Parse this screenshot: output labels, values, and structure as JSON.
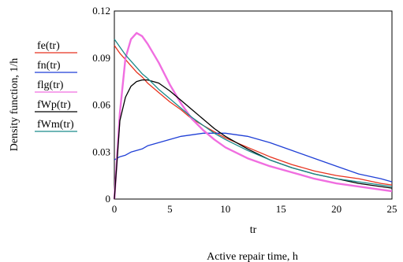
{
  "chart_data": {
    "type": "line",
    "xlabel": "tr",
    "xlabel_caption": "Active repair time, h",
    "ylabel": "Density function, 1/h",
    "xlim": [
      0,
      25
    ],
    "ylim": [
      0,
      0.12
    ],
    "x_ticks": [
      "0",
      "5",
      "10",
      "15",
      "20",
      "25"
    ],
    "y_ticks": [
      "0",
      "0.03",
      "0.06",
      "0.09",
      "0.12"
    ],
    "grid": false,
    "legend_position": "left",
    "x": [
      0,
      0.5,
      1,
      1.5,
      2,
      2.5,
      3,
      4,
      5,
      6,
      7,
      8,
      9,
      10,
      12,
      14,
      16,
      18,
      20,
      22,
      24,
      25
    ],
    "series": [
      {
        "name": "fe(tr)",
        "color": "#e8321e",
        "values": [
          0.098,
          0.093,
          0.089,
          0.085,
          0.081,
          0.078,
          0.074,
          0.068,
          0.062,
          0.057,
          0.051,
          0.047,
          0.043,
          0.039,
          0.033,
          0.027,
          0.022,
          0.018,
          0.015,
          0.013,
          0.01,
          0.009
        ]
      },
      {
        "name": "fn(tr)",
        "color": "#1f3fd6",
        "values": [
          0.025,
          0.027,
          0.028,
          0.03,
          0.031,
          0.032,
          0.034,
          0.036,
          0.038,
          0.04,
          0.041,
          0.042,
          0.042,
          0.042,
          0.04,
          0.036,
          0.031,
          0.026,
          0.021,
          0.016,
          0.013,
          0.011
        ]
      },
      {
        "name": "flg(tr)",
        "color": "#f06ee0",
        "values": [
          0.0,
          0.055,
          0.09,
          0.102,
          0.106,
          0.104,
          0.099,
          0.087,
          0.073,
          0.061,
          0.051,
          0.044,
          0.038,
          0.033,
          0.026,
          0.021,
          0.017,
          0.013,
          0.01,
          0.008,
          0.006,
          0.005
        ]
      },
      {
        "name": "fWp(tr)",
        "color": "#000000",
        "values": [
          0.0,
          0.05,
          0.065,
          0.072,
          0.075,
          0.076,
          0.076,
          0.074,
          0.069,
          0.063,
          0.057,
          0.051,
          0.045,
          0.04,
          0.032,
          0.025,
          0.02,
          0.016,
          0.013,
          0.01,
          0.008,
          0.007
        ]
      },
      {
        "name": "fWm(tr)",
        "color": "#1a8a8a",
        "values": [
          0.102,
          0.097,
          0.092,
          0.088,
          0.084,
          0.08,
          0.077,
          0.07,
          0.064,
          0.058,
          0.052,
          0.047,
          0.042,
          0.038,
          0.031,
          0.025,
          0.02,
          0.016,
          0.013,
          0.011,
          0.009,
          0.008
        ]
      }
    ]
  }
}
